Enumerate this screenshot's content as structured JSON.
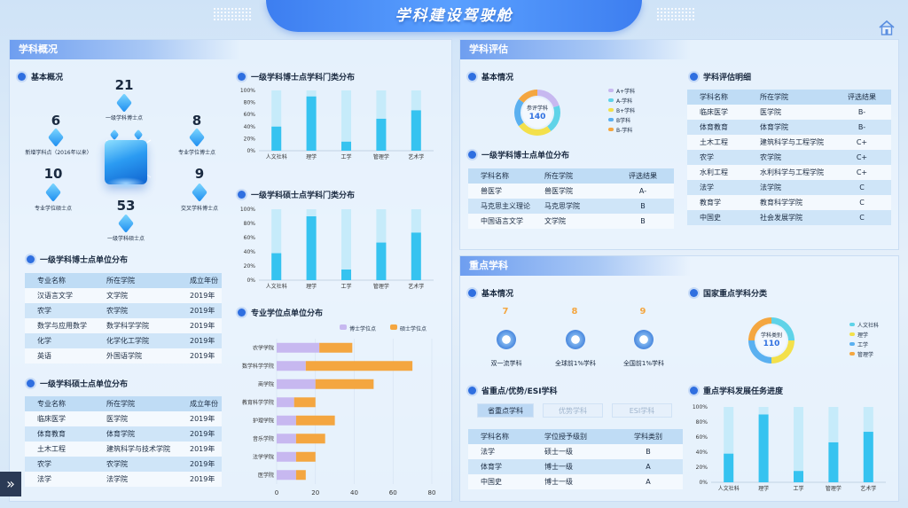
{
  "header": {
    "title": "学科建设驾驶舱"
  },
  "left_panel": {
    "title": "学科概况",
    "overview": {
      "title": "基本概况",
      "nodes": [
        {
          "value": "21",
          "label": "一级学科博士点",
          "color": "#f5c23c"
        },
        {
          "value": "8",
          "label": "专业学位博士点",
          "color": "#f5c23c"
        },
        {
          "value": "9",
          "label": "交叉学科博士点",
          "color": "#2fb5c9"
        },
        {
          "value": "53",
          "label": "一级学科硕士点",
          "color": "#2fb5c9"
        },
        {
          "value": "10",
          "label": "专业学位硕士点",
          "color": "#2fb5c9"
        },
        {
          "value": "6",
          "label": "新增学科点（2016年以来）",
          "color": "#2fb5c9"
        }
      ]
    },
    "doctoral_units": {
      "title": "一级学科博士点单位分布",
      "headers": [
        "专业名称",
        "所在学院",
        "成立年份"
      ],
      "rows": [
        [
          "汉语言文学",
          "文学院",
          "2019年"
        ],
        [
          "农学",
          "农学院",
          "2019年"
        ],
        [
          "数学与应用数学",
          "数学科学学院",
          "2019年"
        ],
        [
          "化学",
          "化学化工学院",
          "2019年"
        ],
        [
          "英语",
          "外国语学院",
          "2019年"
        ]
      ]
    },
    "master_units": {
      "title": "一级学科硕士点单位分布",
      "headers": [
        "专业名称",
        "所在学院",
        "成立年份"
      ],
      "rows": [
        [
          "临床医学",
          "医学院",
          "2019年"
        ],
        [
          "体育教育",
          "体育学院",
          "2019年"
        ],
        [
          "土木工程",
          "建筑科学与技术学院",
          "2019年"
        ],
        [
          "农学",
          "农学院",
          "2019年"
        ],
        [
          "法学",
          "法学院",
          "2019年"
        ]
      ]
    }
  },
  "doctoral_category_chart": {
    "title": "一级学科博士点学科门类分布",
    "chart_data": {
      "type": "bar",
      "categories": [
        "人文社科",
        "理学",
        "工学",
        "管理学",
        "艺术学"
      ],
      "values": [
        40,
        90,
        15,
        53,
        67
      ],
      "ylim": [
        0,
        100
      ],
      "yticks": [
        "0%",
        "20%",
        "40%",
        "60%",
        "80%",
        "100%"
      ]
    }
  },
  "master_category_chart": {
    "title": "一级学科硕士点学科门类分布",
    "chart_data": {
      "type": "bar",
      "categories": [
        "人文社科",
        "理学",
        "工学",
        "管理学",
        "艺术学"
      ],
      "values": [
        38,
        90,
        15,
        53,
        67
      ],
      "ylim": [
        0,
        100
      ],
      "yticks": [
        "0%",
        "20%",
        "40%",
        "60%",
        "80%",
        "100%"
      ]
    }
  },
  "professional_chart": {
    "title": "专业学位点单位分布",
    "chart_data": {
      "type": "bar",
      "orientation": "horizontal",
      "stacked": true,
      "categories": [
        "农学学院",
        "数学科学学院",
        "商学院",
        "教育科学学院",
        "护理学院",
        "音乐学院",
        "法学学院",
        "医学院"
      ],
      "series": [
        {
          "name": "博士学位点",
          "values": [
            22,
            15,
            20,
            9,
            10,
            10,
            10,
            10
          ]
        },
        {
          "name": "硕士学位点",
          "values": [
            17,
            55,
            30,
            11,
            20,
            15,
            10,
            5
          ]
        }
      ],
      "xlim": [
        0,
        80
      ],
      "xticks": [
        "0",
        "20",
        "40",
        "60",
        "80"
      ]
    }
  },
  "right_top_panel": {
    "title": "学科评估",
    "basic": {
      "title": "基本情况",
      "donut_label": "参评学科",
      "donut_value": "140",
      "chart_data": {
        "type": "pie",
        "categories": [
          "A+学科",
          "A-学科",
          "B+学科",
          "B学科",
          "B-学科"
        ],
        "values": [
          20,
          20,
          25,
          20,
          15
        ]
      },
      "legend": [
        "A+学科",
        "A-学科",
        "B+学科",
        "B学科",
        "B-学科"
      ]
    },
    "doctoral_eval": {
      "title": "一级学科博士点单位分布",
      "headers": [
        "学科名称",
        "所在学院",
        "评选结果"
      ],
      "rows": [
        [
          "兽医学",
          "兽医学院",
          "A-"
        ],
        [
          "马克思主义理论",
          "马克思学院",
          "B"
        ],
        [
          "中国语言文学",
          "文学院",
          "B"
        ]
      ]
    },
    "eval_detail": {
      "title": "学科评估明细",
      "headers": [
        "学科名称",
        "所在学院",
        "评选结果"
      ],
      "rows": [
        [
          "临床医学",
          "医学院",
          "B-"
        ],
        [
          "体育教育",
          "体育学院",
          "B-"
        ],
        [
          "土木工程",
          "建筑科学与工程学院",
          "C+"
        ],
        [
          "农学",
          "农学院",
          "C+"
        ],
        [
          "水利工程",
          "水利科学与工程学院",
          "C+"
        ],
        [
          "法学",
          "法学院",
          "C"
        ],
        [
          "教育学",
          "教育科学学院",
          "C"
        ],
        [
          "中国史",
          "社会发展学院",
          "C"
        ]
      ]
    }
  },
  "right_bottom_panel": {
    "title": "重点学科",
    "basic": {
      "title": "基本情况",
      "medals": [
        {
          "value": "7",
          "label": "双一流学科"
        },
        {
          "value": "8",
          "label": "全球前1%学科"
        },
        {
          "value": "9",
          "label": "全国前1%学科"
        }
      ]
    },
    "national": {
      "title": "国家重点学科分类",
      "donut_label": "学科类别",
      "donut_value": "110",
      "chart_data": {
        "type": "pie",
        "categories": [
          "人文社科",
          "理学",
          "工学",
          "管理学"
        ],
        "values": [
          25,
          25,
          25,
          25
        ]
      },
      "legend": [
        "人文社科",
        "理学",
        "工学",
        "管理学"
      ]
    },
    "provincial": {
      "title": "省重点/优势/ESI学科",
      "tabs": [
        "省重点学科",
        "优势学科",
        "ESI学科"
      ],
      "headers": [
        "学科名称",
        "学位授予级别",
        "学科类别"
      ],
      "rows": [
        [
          "法学",
          "硕士一级",
          "B"
        ],
        [
          "体育学",
          "博士一级",
          "A"
        ],
        [
          "中国史",
          "博士一级",
          "A"
        ]
      ]
    },
    "progress_chart": {
      "title": "重点学科发展任务进度",
      "chart_data": {
        "type": "bar",
        "categories": [
          "人文社科",
          "理学",
          "工学",
          "管理学",
          "艺术学"
        ],
        "values": [
          38,
          90,
          15,
          53,
          67
        ],
        "ylim": [
          0,
          100
        ],
        "yticks": [
          "0%",
          "20%",
          "40%",
          "60%",
          "80%",
          "100%"
        ]
      }
    }
  },
  "colors": {
    "bar": "#36c3f0",
    "bar_bg": "#c6ebfa",
    "phd": "#c7b8f0",
    "master": "#f4a640",
    "accent": "#2f6fe0"
  }
}
